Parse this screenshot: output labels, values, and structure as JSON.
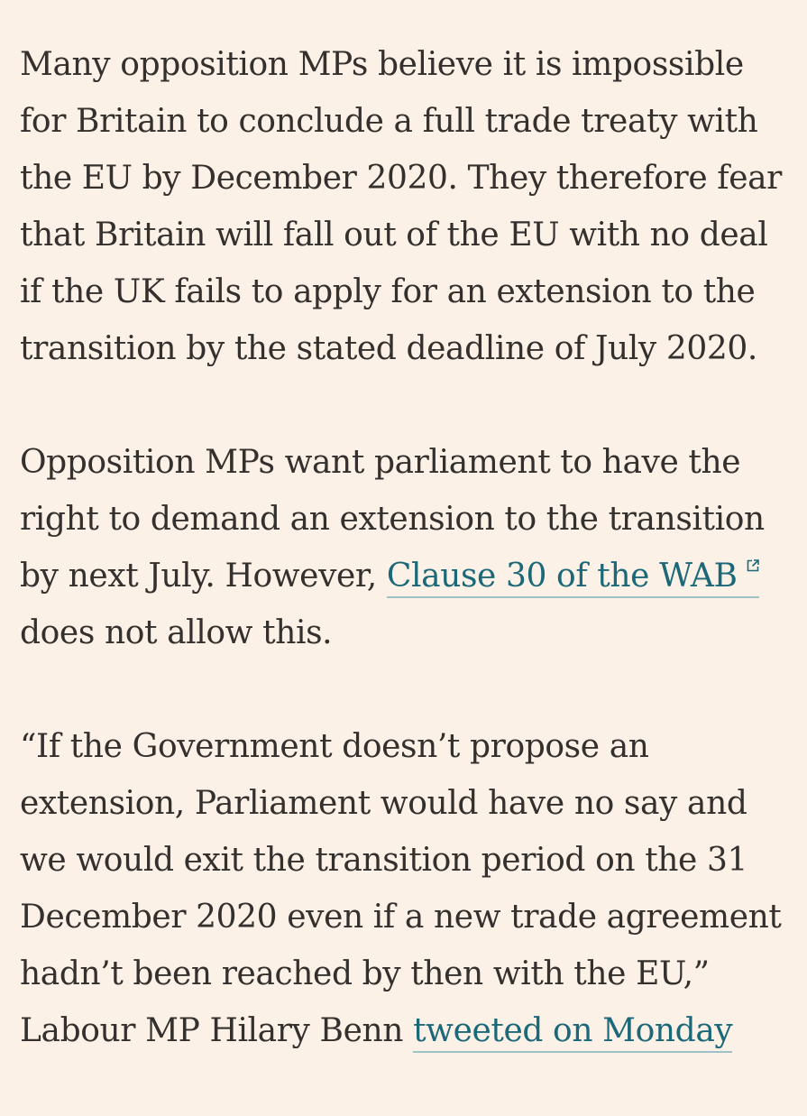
{
  "colors": {
    "background": "#fcf1e6",
    "text": "#33302e",
    "link": "#1b6878",
    "link_underline": "#9fc2c9"
  },
  "article": {
    "paragraph_1": "Many opposition MPs believe it is impossible for Britain to conclude a full trade treaty with the EU by December 2020. They therefore fear that Britain will fall out of the EU with no deal if the UK fails to apply for an extension to the transition by the stated deadline of July 2020.",
    "paragraph_2": {
      "before_link": "Opposition MPs want parliament to have the right to demand an extension to the transition by next July. However, ",
      "link_text": "Clause 30 of the WAB",
      "link_icon": "external-link-icon",
      "after_link": "does not allow this."
    },
    "paragraph_3": {
      "text": "“If the Government doesn’t propose an extension, Parliament would have no say and we would exit the transition period on the 31 December 2020 even if a new trade agreement hadn’t been reached by then with the EU,” Labour MP Hilary Benn ",
      "link_text": "tweeted on Monday"
    }
  }
}
